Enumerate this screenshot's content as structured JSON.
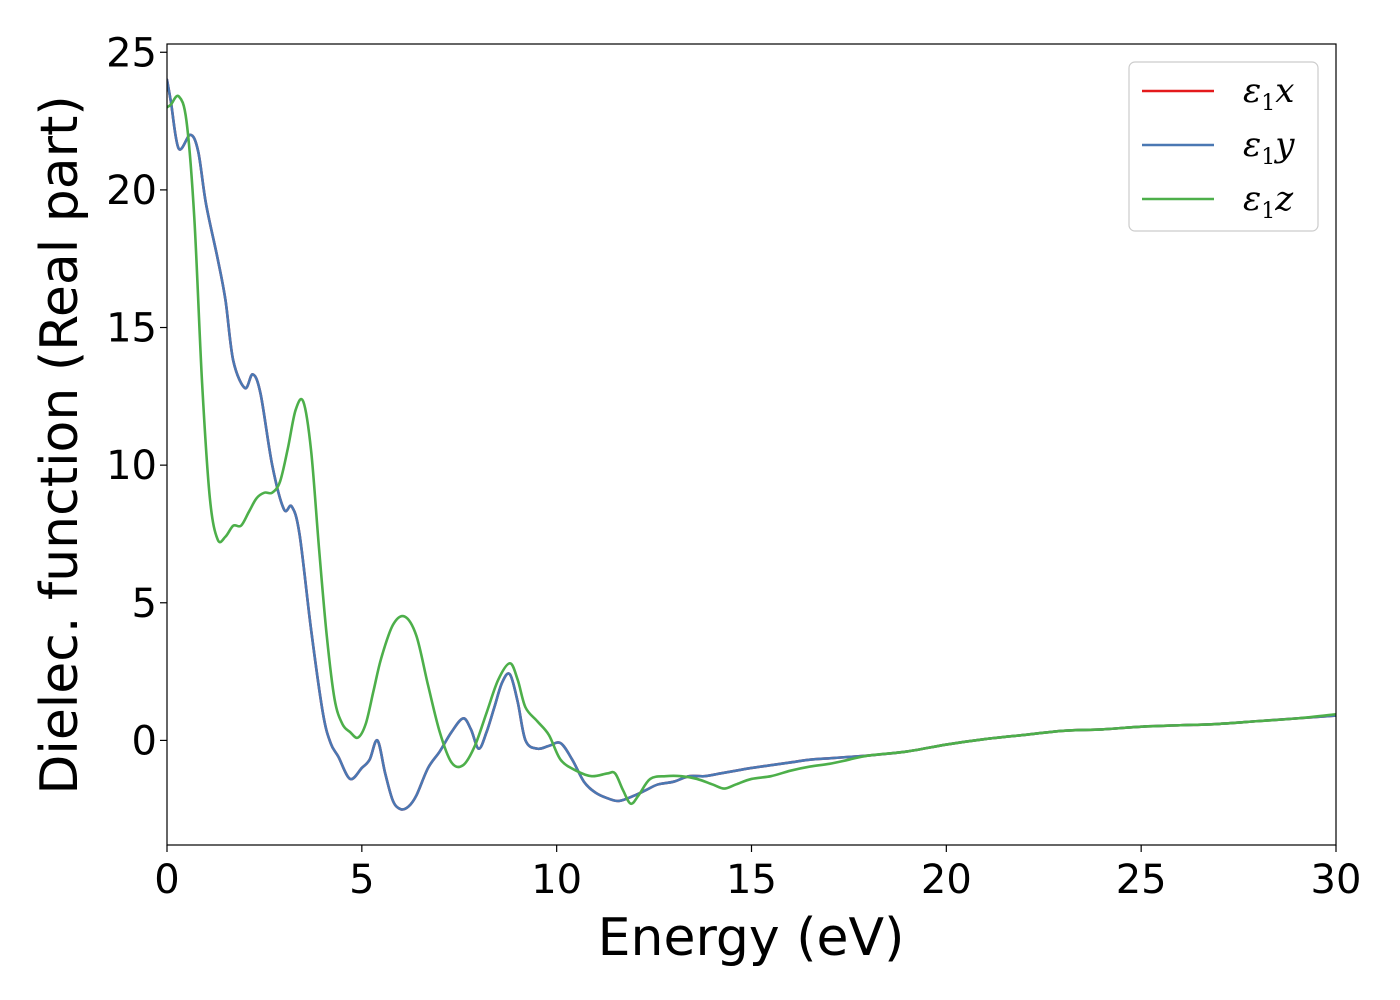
{
  "chart_data": {
    "type": "line",
    "xlabel": "Energy (eV)",
    "ylabel": "Dielec. function (Real part)",
    "xlim": [
      0,
      30
    ],
    "ylim": [
      -3.8,
      25.3
    ],
    "xticks": [
      0,
      5,
      10,
      15,
      20,
      25,
      30
    ],
    "yticks": [
      0,
      5,
      10,
      15,
      20,
      25
    ],
    "legend_position": "top-right",
    "grid": false,
    "series": [
      {
        "name": "ε1x",
        "legend_main": "ε",
        "legend_sub": "1",
        "legend_var": "x",
        "color": "#e41a1c",
        "x": [
          0,
          0.1,
          0.3,
          0.6,
          0.8,
          1.0,
          1.3,
          1.5,
          1.7,
          2.0,
          2.2,
          2.4,
          2.7,
          3.0,
          3.2,
          3.4,
          3.7,
          4.0,
          4.2,
          4.4,
          4.7,
          5.0,
          5.2,
          5.4,
          5.6,
          5.8,
          6.0,
          6.2,
          6.4,
          6.7,
          7.0,
          7.3,
          7.6,
          7.8,
          8.0,
          8.2,
          8.4,
          8.6,
          8.8,
          9.0,
          9.2,
          9.5,
          9.8,
          10.1,
          10.4,
          10.7,
          11.0,
          11.3,
          11.6,
          12.0,
          12.3,
          12.6,
          13.0,
          13.4,
          13.8,
          14.2,
          14.6,
          15.0,
          15.5,
          16.0,
          16.5,
          17.0,
          17.5,
          18.0,
          19.0,
          20.0,
          21.0,
          22.0,
          23.0,
          24.0,
          25.0,
          26.0,
          27.0,
          28.0,
          29.0,
          30.0
        ],
        "y": [
          24.0,
          23.2,
          21.5,
          22.0,
          21.4,
          19.5,
          17.5,
          16.0,
          13.8,
          12.8,
          13.3,
          12.6,
          10.0,
          8.4,
          8.5,
          7.5,
          4.0,
          1.0,
          -0.1,
          -0.6,
          -1.4,
          -1.0,
          -0.7,
          0.0,
          -1.2,
          -2.2,
          -2.5,
          -2.4,
          -2.0,
          -1.0,
          -0.4,
          0.3,
          0.8,
          0.4,
          -0.3,
          0.3,
          1.2,
          2.1,
          2.4,
          1.4,
          0.0,
          -0.3,
          -0.2,
          -0.1,
          -0.7,
          -1.5,
          -1.9,
          -2.1,
          -2.2,
          -2.0,
          -1.8,
          -1.6,
          -1.5,
          -1.3,
          -1.3,
          -1.2,
          -1.1,
          -1.0,
          -0.9,
          -0.8,
          -0.7,
          -0.65,
          -0.6,
          -0.55,
          -0.4,
          -0.15,
          0.05,
          0.2,
          0.35,
          0.4,
          0.5,
          0.55,
          0.6,
          0.7,
          0.8,
          0.9
        ]
      },
      {
        "name": "ε1y",
        "legend_main": "ε",
        "legend_sub": "1",
        "legend_var": "y",
        "color": "#4a78b3",
        "x": [
          0,
          0.1,
          0.3,
          0.6,
          0.8,
          1.0,
          1.3,
          1.5,
          1.7,
          2.0,
          2.2,
          2.4,
          2.7,
          3.0,
          3.2,
          3.4,
          3.7,
          4.0,
          4.2,
          4.4,
          4.7,
          5.0,
          5.2,
          5.4,
          5.6,
          5.8,
          6.0,
          6.2,
          6.4,
          6.7,
          7.0,
          7.3,
          7.6,
          7.8,
          8.0,
          8.2,
          8.4,
          8.6,
          8.8,
          9.0,
          9.2,
          9.5,
          9.8,
          10.1,
          10.4,
          10.7,
          11.0,
          11.3,
          11.6,
          12.0,
          12.3,
          12.6,
          13.0,
          13.4,
          13.8,
          14.2,
          14.6,
          15.0,
          15.5,
          16.0,
          16.5,
          17.0,
          17.5,
          18.0,
          19.0,
          20.0,
          21.0,
          22.0,
          23.0,
          24.0,
          25.0,
          26.0,
          27.0,
          28.0,
          29.0,
          30.0
        ],
        "y": [
          24.0,
          23.2,
          21.5,
          22.0,
          21.4,
          19.5,
          17.5,
          16.0,
          13.8,
          12.8,
          13.3,
          12.6,
          10.0,
          8.4,
          8.5,
          7.5,
          4.0,
          1.0,
          -0.1,
          -0.6,
          -1.4,
          -1.0,
          -0.7,
          0.0,
          -1.2,
          -2.2,
          -2.5,
          -2.4,
          -2.0,
          -1.0,
          -0.4,
          0.3,
          0.8,
          0.4,
          -0.3,
          0.3,
          1.2,
          2.1,
          2.4,
          1.4,
          0.0,
          -0.3,
          -0.2,
          -0.1,
          -0.7,
          -1.5,
          -1.9,
          -2.1,
          -2.2,
          -2.0,
          -1.8,
          -1.6,
          -1.5,
          -1.3,
          -1.3,
          -1.2,
          -1.1,
          -1.0,
          -0.9,
          -0.8,
          -0.7,
          -0.65,
          -0.6,
          -0.55,
          -0.4,
          -0.15,
          0.05,
          0.2,
          0.35,
          0.4,
          0.5,
          0.55,
          0.6,
          0.7,
          0.8,
          0.9
        ]
      },
      {
        "name": "ε1z",
        "legend_main": "ε",
        "legend_sub": "1",
        "legend_var": "z",
        "color": "#4daf4a",
        "x": [
          0,
          0.1,
          0.3,
          0.5,
          0.7,
          0.9,
          1.1,
          1.3,
          1.5,
          1.7,
          1.9,
          2.1,
          2.3,
          2.5,
          2.7,
          2.9,
          3.1,
          3.3,
          3.5,
          3.7,
          3.9,
          4.1,
          4.3,
          4.5,
          4.7,
          4.9,
          5.1,
          5.3,
          5.5,
          5.8,
          6.1,
          6.4,
          6.7,
          7.0,
          7.3,
          7.6,
          7.9,
          8.2,
          8.5,
          8.8,
          9.0,
          9.2,
          9.5,
          9.8,
          10.1,
          10.5,
          10.9,
          11.3,
          11.5,
          11.7,
          11.9,
          12.1,
          12.4,
          12.8,
          13.2,
          13.6,
          14.0,
          14.3,
          14.6,
          15.0,
          15.5,
          16.0,
          16.5,
          17.0,
          17.5,
          18.0,
          19.0,
          20.0,
          21.0,
          22.0,
          23.0,
          24.0,
          25.0,
          26.0,
          27.0,
          28.0,
          29.0,
          30.0
        ],
        "y": [
          23.0,
          23.1,
          23.4,
          22.5,
          19.0,
          13.0,
          8.8,
          7.3,
          7.4,
          7.8,
          7.8,
          8.3,
          8.8,
          9.0,
          9.0,
          9.4,
          10.6,
          12.0,
          12.3,
          10.5,
          7.0,
          3.8,
          1.5,
          0.6,
          0.3,
          0.1,
          0.6,
          1.8,
          3.0,
          4.2,
          4.5,
          3.8,
          2.0,
          0.3,
          -0.8,
          -0.9,
          -0.2,
          1.0,
          2.2,
          2.8,
          2.2,
          1.2,
          0.7,
          0.2,
          -0.7,
          -1.1,
          -1.3,
          -1.2,
          -1.2,
          -1.8,
          -2.3,
          -2.0,
          -1.4,
          -1.3,
          -1.3,
          -1.4,
          -1.6,
          -1.75,
          -1.6,
          -1.4,
          -1.3,
          -1.1,
          -0.95,
          -0.85,
          -0.7,
          -0.55,
          -0.4,
          -0.15,
          0.05,
          0.2,
          0.35,
          0.4,
          0.5,
          0.55,
          0.6,
          0.7,
          0.8,
          0.95
        ]
      }
    ]
  }
}
